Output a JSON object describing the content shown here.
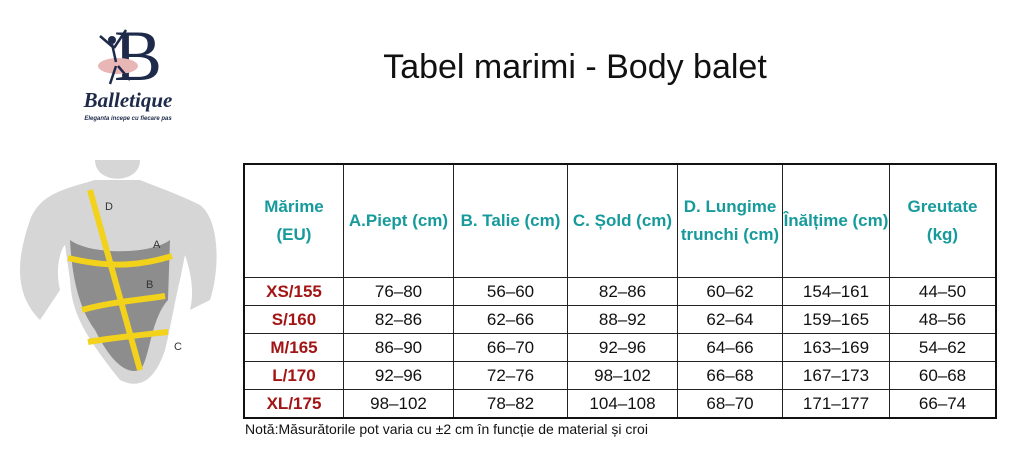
{
  "logo": {
    "letter": "B",
    "name": "Balletique",
    "tagline": "Eleganta incepe cu fiecare pas"
  },
  "title": "Tabel marimi - Body balet",
  "figure": {
    "labels": [
      "D",
      "A",
      "B",
      "C"
    ]
  },
  "table": {
    "headers": [
      "Mărime (EU)",
      "A.Piept (cm)",
      "B. Talie (cm)",
      "C. Șold (cm)",
      "D. Lungime trunchi (cm)",
      "Înălțime (cm)",
      "Greutate (kg)"
    ],
    "rows": [
      [
        "XS/155",
        "76–80",
        "56–60",
        "82–86",
        "60–62",
        "154–161",
        "44–50"
      ],
      [
        "S/160",
        "82–86",
        "62–66",
        "88–92",
        "62–64",
        "159–165",
        "48–56"
      ],
      [
        "M/165",
        "86–90",
        "66–70",
        "92–96",
        "64–66",
        "163–169",
        "54–62"
      ],
      [
        "L/170",
        "92–96",
        "72–76",
        "98–102",
        "66–68",
        "167–173",
        "60–68"
      ],
      [
        "XL/175",
        "98–102",
        "78–82",
        "104–108",
        "68–70",
        "171–177",
        "66–74"
      ]
    ]
  },
  "note": "Notă:Măsurătorile pot varia cu ±2 cm în funcție de material și croi"
}
